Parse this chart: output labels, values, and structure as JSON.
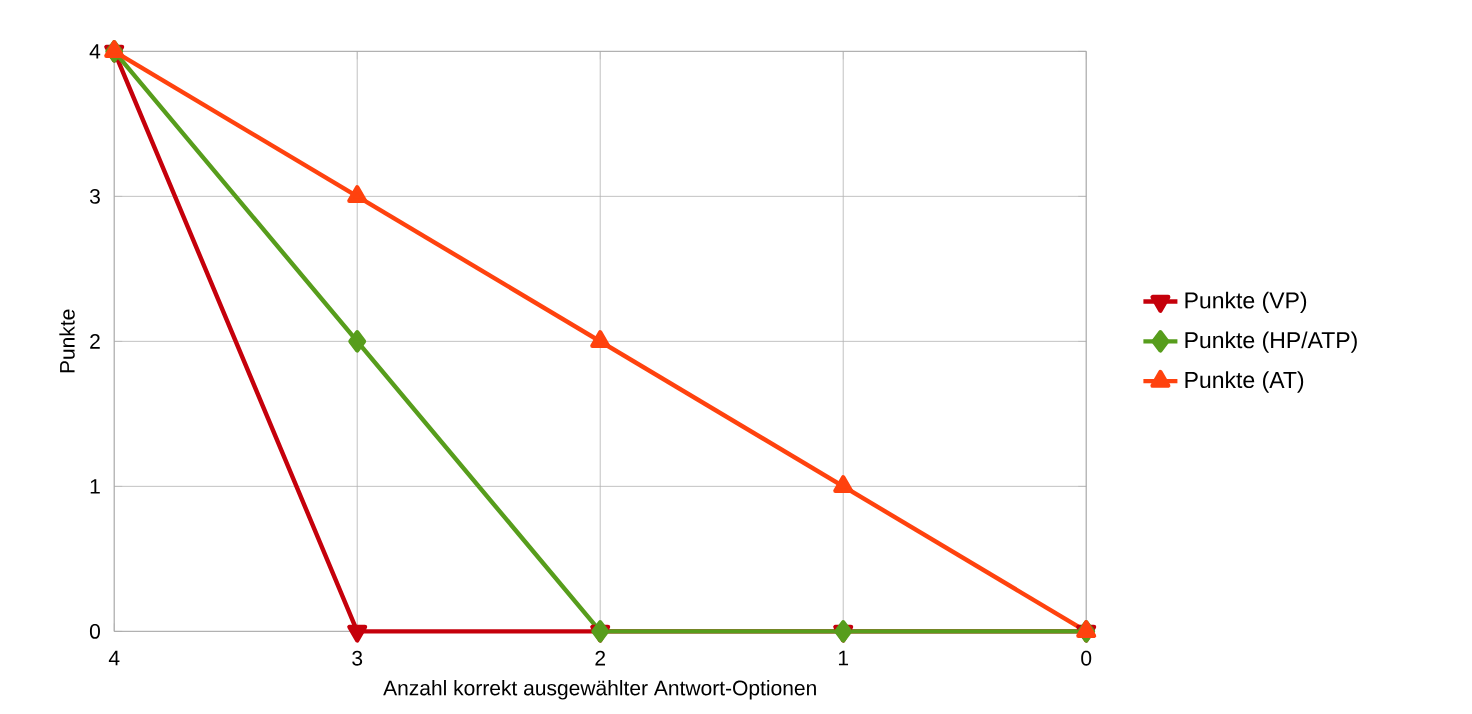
{
  "chart_data": {
    "type": "line",
    "xlabel": "Anzahl korrekt ausgewählter Antwort-Optionen",
    "ylabel": "Punkte",
    "categories": [
      "4",
      "3",
      "2",
      "1",
      "0"
    ],
    "series": [
      {
        "name": "Punkte (VP)",
        "color": "#c5000b",
        "marker": "triangle-down",
        "values": [
          4,
          0,
          0,
          0,
          0
        ]
      },
      {
        "name": "Punkte (HP/ATP)",
        "color": "#579d1c",
        "marker": "diamond",
        "values": [
          4,
          2,
          0,
          0,
          0
        ]
      },
      {
        "name": "Punkte (AT)",
        "color": "#ff420e",
        "marker": "triangle",
        "values": [
          4,
          3,
          2,
          1,
          0
        ]
      }
    ],
    "ylim": [
      0,
      4
    ],
    "yticks": [
      0,
      1,
      2,
      3,
      4
    ],
    "grid": true,
    "legend": "right"
  }
}
